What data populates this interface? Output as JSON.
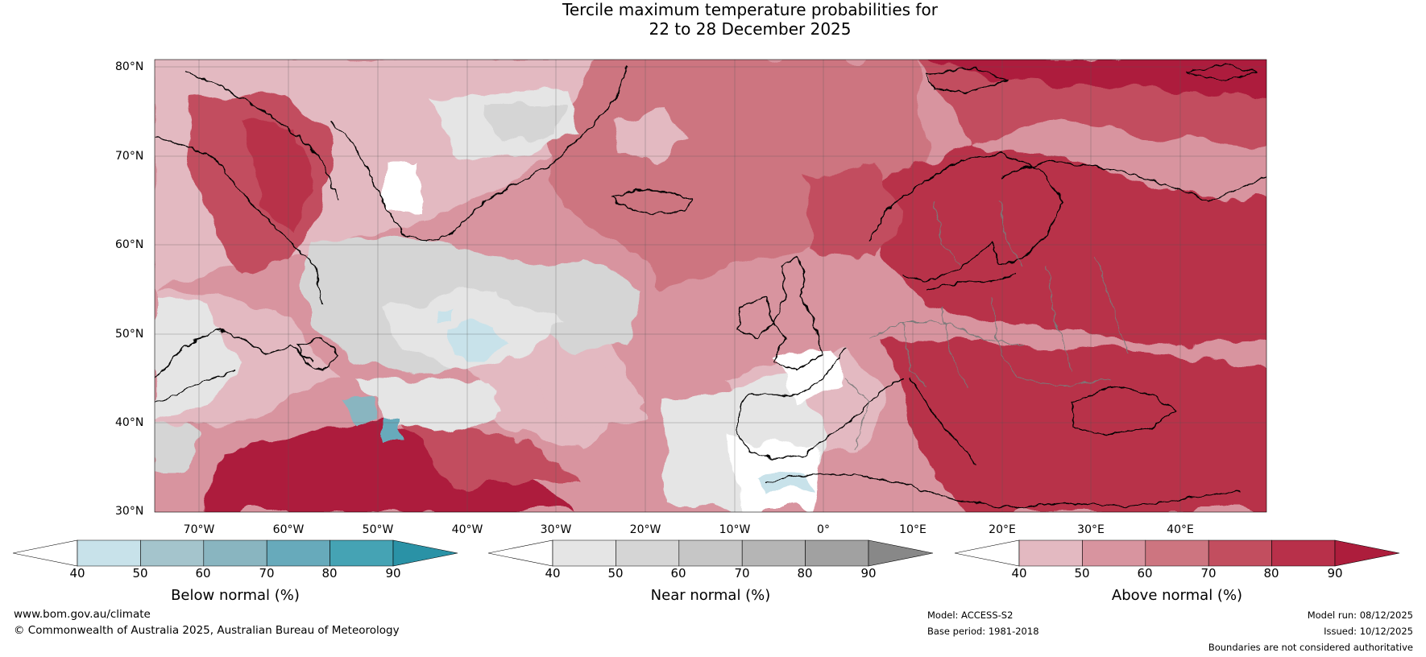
{
  "title": {
    "line1": "Tercile maximum temperature probabilities for",
    "line2": "22 to 28 December 2025"
  },
  "map": {
    "lat_labels": [
      "80°N",
      "70°N",
      "60°N",
      "50°N",
      "40°N",
      "30°N"
    ],
    "lon_labels": [
      "70°W",
      "60°W",
      "50°W",
      "40°W",
      "30°W",
      "20°W",
      "10°W",
      "0°",
      "10°E",
      "20°E",
      "30°E",
      "40°E"
    ]
  },
  "colorbars": {
    "below": {
      "title": "Below normal (%)",
      "ticks": [
        "40",
        "50",
        "60",
        "70",
        "80",
        "90"
      ],
      "colors": [
        "#ffffff",
        "#c8e2ea",
        "#a4c4cc",
        "#89b5c0",
        "#67aabb",
        "#45a3b4",
        "#2a92a6"
      ]
    },
    "near": {
      "title": "Near normal (%)",
      "ticks": [
        "40",
        "50",
        "60",
        "70",
        "80",
        "90"
      ],
      "colors": [
        "#ffffff",
        "#e5e5e5",
        "#d5d5d5",
        "#c6c6c6",
        "#b5b5b5",
        "#a1a1a1",
        "#888888"
      ]
    },
    "above": {
      "title": "Above normal (%)",
      "ticks": [
        "40",
        "50",
        "60",
        "70",
        "80",
        "90"
      ],
      "colors": [
        "#ffffff",
        "#e3b9c1",
        "#d8949f",
        "#cd7580",
        "#c24e5f",
        "#b8304a",
        "#ad1d3c"
      ]
    }
  },
  "footer": {
    "website": "www.bom.gov.au/climate",
    "copyright": "© Commonwealth of Australia 2025, Australian Bureau of Meteorology",
    "model": "Model: ACCESS-S2",
    "base_period": "Base period: 1981-2018",
    "model_run": "Model run: 08/12/2025",
    "issued": "Issued: 10/12/2025",
    "disclaimer": "Boundaries are not considered authoritative"
  }
}
